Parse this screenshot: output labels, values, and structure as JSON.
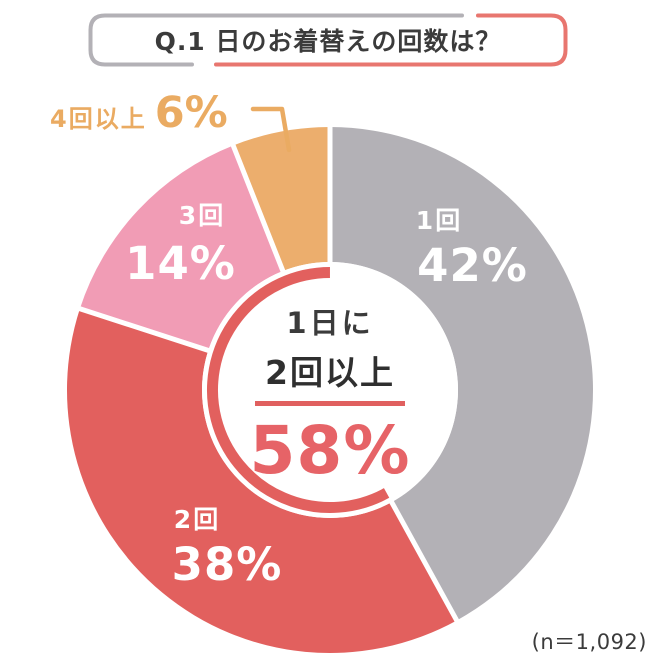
{
  "title": {
    "question": "Q.1 日のお着替えの回数は？"
  },
  "chart_data": {
    "type": "pie",
    "variant": "donut",
    "title": "Q.1 日のお着替えの回数は？",
    "unit": "%",
    "direction": "clockwise",
    "start_angle_deg": 0,
    "segments": [
      {
        "label": "1回",
        "value": 42,
        "display": "42%",
        "color": "#b3b1b6",
        "label_outside": false
      },
      {
        "label": "2回",
        "value": 38,
        "display": "38%",
        "color": "#e2605e",
        "label_outside": false
      },
      {
        "label": "3回",
        "value": 14,
        "display": "14%",
        "color": "#f19cb5",
        "label_outside": false
      },
      {
        "label": "4回以上",
        "value": 6,
        "display": "6%",
        "color": "#ecae6d",
        "label_outside": true
      }
    ],
    "center_label": {
      "line1": "1日に",
      "line2": "2回以上",
      "value": "58%",
      "highlight_color": "#e2605e",
      "highlight_segment_indices": [
        1,
        2,
        3
      ]
    },
    "sample_note": "(n＝1,092)"
  },
  "colors": {
    "title_border_gray": "#b3b1b6",
    "title_border_red": "#e8766f",
    "text_dark": "#3b3b3b",
    "accent_coral": "#e2605e",
    "label_orange": "#eaab62",
    "background": "#ffffff"
  }
}
